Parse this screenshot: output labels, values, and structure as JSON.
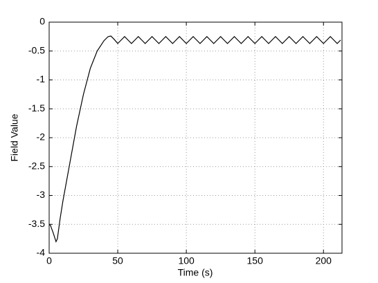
{
  "chart_data": {
    "type": "line",
    "xlabel": "Time (s)",
    "ylabel": "Field Value",
    "x": [
      0,
      1,
      3,
      5,
      6,
      8,
      10,
      15,
      20,
      25,
      30,
      35,
      40,
      43,
      45,
      47.5,
      50,
      52.5,
      55,
      57.5,
      60,
      62.5,
      65,
      67.5,
      70,
      72.5,
      75,
      77.5,
      80,
      82.5,
      85,
      87.5,
      90,
      92.5,
      95,
      97.5,
      100,
      102.5,
      105,
      107.5,
      110,
      112.5,
      115,
      117.5,
      120,
      122.5,
      125,
      127.5,
      130,
      132.5,
      135,
      137.5,
      140,
      142.5,
      145,
      147.5,
      150,
      152.5,
      155,
      157.5,
      160,
      162.5,
      165,
      167.5,
      170,
      172.5,
      175,
      177.5,
      180,
      182.5,
      185,
      187.5,
      190,
      192.5,
      195,
      197.5,
      200,
      202.5,
      205,
      207.5,
      210,
      212.5
    ],
    "series": [
      {
        "color": "#000000",
        "values": [
          -3.5,
          -3.52,
          -3.65,
          -3.8,
          -3.75,
          -3.4,
          -3.1,
          -2.45,
          -1.8,
          -1.25,
          -0.8,
          -0.5,
          -0.32,
          -0.25,
          -0.24,
          -0.3,
          -0.37,
          -0.31,
          -0.25,
          -0.31,
          -0.37,
          -0.31,
          -0.25,
          -0.31,
          -0.37,
          -0.31,
          -0.25,
          -0.31,
          -0.37,
          -0.31,
          -0.25,
          -0.31,
          -0.37,
          -0.31,
          -0.25,
          -0.31,
          -0.37,
          -0.31,
          -0.25,
          -0.31,
          -0.37,
          -0.31,
          -0.25,
          -0.31,
          -0.37,
          -0.31,
          -0.25,
          -0.31,
          -0.37,
          -0.31,
          -0.25,
          -0.31,
          -0.37,
          -0.31,
          -0.25,
          -0.31,
          -0.37,
          -0.31,
          -0.25,
          -0.31,
          -0.37,
          -0.31,
          -0.25,
          -0.31,
          -0.37,
          -0.31,
          -0.25,
          -0.31,
          -0.37,
          -0.31,
          -0.25,
          -0.31,
          -0.37,
          -0.31,
          -0.25,
          -0.31,
          -0.37,
          -0.31,
          -0.25,
          -0.31,
          -0.37,
          -0.31
        ]
      }
    ],
    "xlim": [
      0,
      213.5
    ],
    "xticks": [
      0,
      50,
      100,
      150,
      200
    ],
    "ylim": [
      -4,
      0
    ],
    "yticks": [
      -4,
      -3.5,
      -3,
      -2.5,
      -2,
      -1.5,
      -1,
      -0.5,
      0
    ],
    "grid": true
  }
}
